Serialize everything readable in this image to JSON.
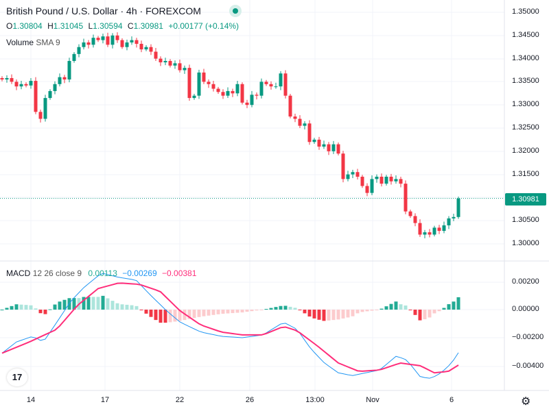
{
  "header": {
    "title": "British Pound / U.S. Dollar · 4h · FOREXCOM",
    "ohlc": {
      "o_label": "O",
      "o": "1.30804",
      "h_label": "H",
      "h": "1.31045",
      "l_label": "L",
      "l": "1.30594",
      "c_label": "C",
      "c": "1.30981",
      "change": "+0.00177 (+0.14%)"
    },
    "volume_label": "Volume",
    "volume_sma": "SMA 9",
    "status_color": "#089981"
  },
  "macd_legend": {
    "name": "MACD",
    "params": "12 26 close 9",
    "hist": "0.00113",
    "macd": "−0.00269",
    "signal": "−0.00381"
  },
  "price_axis": [
    "1.35000",
    "1.34500",
    "1.34000",
    "1.33500",
    "1.33000",
    "1.32500",
    "1.32000",
    "1.31500",
    "1.30500",
    "1.30000"
  ],
  "current_price": "1.30981",
  "macd_axis": [
    "0.00200",
    "0.00000",
    "−0.00200",
    "−0.00400"
  ],
  "time_axis": [
    "14",
    "17",
    "22",
    "26",
    "13:00",
    "Nov",
    "6"
  ],
  "colors": {
    "up": "#089981",
    "down": "#f23645",
    "macd": "#2962ff",
    "signal": "#ff2d7a",
    "hist_up_strong": "#22ab94",
    "hist_up_weak": "#ace5dc",
    "hist_dn_strong": "#f23645",
    "hist_dn_weak": "#fccbcd"
  },
  "chart_data": {
    "type": "candlestick",
    "closes": [
      1.3355,
      1.3358,
      1.335,
      1.334,
      1.3345,
      1.3342,
      1.3352,
      1.3285,
      1.327,
      1.3315,
      1.333,
      1.3345,
      1.336,
      1.3355,
      1.3395,
      1.341,
      1.3425,
      1.3435,
      1.343,
      1.3445,
      1.344,
      1.3448,
      1.343,
      1.345,
      1.344,
      1.3425,
      1.3435,
      1.344,
      1.3432,
      1.342,
      1.3425,
      1.3415,
      1.34,
      1.3392,
      1.3395,
      1.3385,
      1.339,
      1.3375,
      1.338,
      1.3315,
      1.332,
      1.337,
      1.335,
      1.3345,
      1.3335,
      1.3328,
      1.332,
      1.333,
      1.3325,
      1.3345,
      1.3305,
      1.33,
      1.3322,
      1.332,
      1.335,
      1.3345,
      1.334,
      1.334,
      1.3368,
      1.332,
      1.3275,
      1.327,
      1.3255,
      1.326,
      1.322,
      1.3225,
      1.321,
      1.3215,
      1.32,
      1.3215,
      1.3195,
      1.314,
      1.315,
      1.3155,
      1.3145,
      1.3125,
      1.311,
      1.314,
      1.3145,
      1.313,
      1.3145,
      1.3135,
      1.314,
      1.313,
      1.307,
      1.306,
      1.3045,
      1.302,
      1.3025,
      1.302,
      1.3035,
      1.3028,
      1.304,
      1.3055,
      1.3058,
      1.30981
    ],
    "price_range": [
      1.2975,
      1.352
    ],
    "macd_keypoints": [
      [
        0,
        -0.0031
      ],
      [
        3,
        -0.0023
      ],
      [
        6.4,
        -0.0019
      ],
      [
        8.6,
        -0.0023
      ],
      [
        11.4,
        -0.0009
      ],
      [
        14.3,
        0.0006
      ],
      [
        17.1,
        0.0016
      ],
      [
        20.7,
        0.0026
      ],
      [
        24.3,
        0.0023
      ],
      [
        27.9,
        0.0021
      ],
      [
        30.7,
        0.0011
      ],
      [
        34.3,
        -0.0001
      ],
      [
        37.1,
        -0.0009
      ],
      [
        41.4,
        -0.0016
      ],
      [
        45.7,
        -0.0019
      ],
      [
        50,
        -0.002
      ],
      [
        54.3,
        -0.0018
      ],
      [
        58.6,
        -0.0009
      ],
      [
        61.4,
        -0.0014
      ],
      [
        64.3,
        -0.0028
      ],
      [
        67.1,
        -0.0038
      ],
      [
        70,
        -0.0045
      ],
      [
        72.9,
        -0.0047
      ],
      [
        75.7,
        -0.0045
      ],
      [
        78.6,
        -0.0043
      ],
      [
        82.1,
        -0.0033
      ],
      [
        84.3,
        -0.0036
      ],
      [
        87.1,
        -0.0048
      ],
      [
        89.3,
        -0.0049
      ],
      [
        91.4,
        -0.0045
      ],
      [
        93.6,
        -0.0038
      ],
      [
        95.7,
        -0.0027
      ]
    ],
    "signal_keypoints": [
      [
        0,
        -0.0031
      ],
      [
        5.7,
        -0.0023
      ],
      [
        11.4,
        -0.0014
      ],
      [
        15.7,
        0.0003
      ],
      [
        20,
        0.0015
      ],
      [
        24.3,
        0.0019
      ],
      [
        28.6,
        0.0018
      ],
      [
        32.9,
        0.0013
      ],
      [
        37.1,
        -0.0001
      ],
      [
        41.4,
        -0.0011
      ],
      [
        45.7,
        -0.0016
      ],
      [
        50,
        -0.0018
      ],
      [
        54.3,
        -0.0018
      ],
      [
        58.6,
        -0.0012
      ],
      [
        61.4,
        -0.0015
      ],
      [
        65.7,
        -0.0026
      ],
      [
        70,
        -0.0038
      ],
      [
        74.3,
        -0.0044
      ],
      [
        78.6,
        -0.0043
      ],
      [
        82.9,
        -0.0038
      ],
      [
        87.1,
        -0.004
      ],
      [
        90,
        -0.0045
      ],
      [
        92.9,
        -0.0044
      ],
      [
        95.7,
        -0.0038
      ]
    ],
    "macd_range": [
      0.00285,
      -0.0057
    ]
  }
}
